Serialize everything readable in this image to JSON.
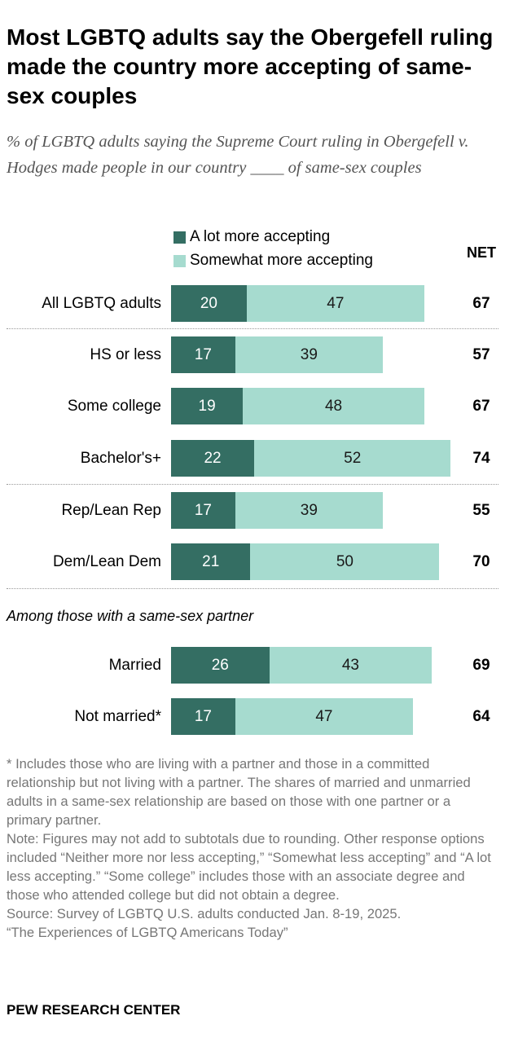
{
  "title": "Most LGBTQ adults say the Obergefell ruling made the country more accepting of same-sex couples",
  "subtitle": "% of LGBTQ adults saying the Supreme Court ruling in Obergefell v. Hodges made people in our country ____ of same-sex couples",
  "net_header": "NET",
  "section_label": "Among those with a same-sex partner",
  "notes": {
    "asterisk": "* Includes those who are living with a partner and those in a committed relationship but not living with a partner. The shares of married and unmarried adults in a same-sex relationship are based on those with one partner or a primary partner.",
    "note": "Note: Figures may not add to subtotals due to rounding. Other response options included “Neither more nor less accepting,” “Somewhat less accepting” and “A lot less accepting.” “Some college” includes those with an associate degree and those who attended college but did not obtain a degree.",
    "source": "Source: Survey of LGBTQ U.S. adults conducted Jan. 8-19, 2025.",
    "report": "“The Experiences of LGBTQ Americans Today”"
  },
  "brand": "PEW RESEARCH CENTER",
  "colors": {
    "dark": "#346e63",
    "light": "#a6dbcf",
    "divider": "#9a9a9a",
    "note_text": "#767676"
  },
  "chart_data": {
    "type": "bar",
    "orientation": "horizontal",
    "stacked": true,
    "categories": [
      "All LGBTQ adults",
      "HS or less",
      "Some college",
      "Bachelor's+",
      "Rep/Lean Rep",
      "Dem/Lean Dem",
      "Married",
      "Not married*"
    ],
    "series": [
      {
        "name": "A lot more accepting",
        "color": "#346e63",
        "values": [
          20,
          17,
          19,
          22,
          17,
          21,
          26,
          17
        ]
      },
      {
        "name": "Somewhat more accepting",
        "color": "#a6dbcf",
        "values": [
          47,
          39,
          48,
          52,
          39,
          50,
          43,
          47
        ]
      }
    ],
    "net": [
      67,
      57,
      67,
      74,
      55,
      70,
      69,
      64
    ],
    "legend_position": "top",
    "grid": false
  }
}
